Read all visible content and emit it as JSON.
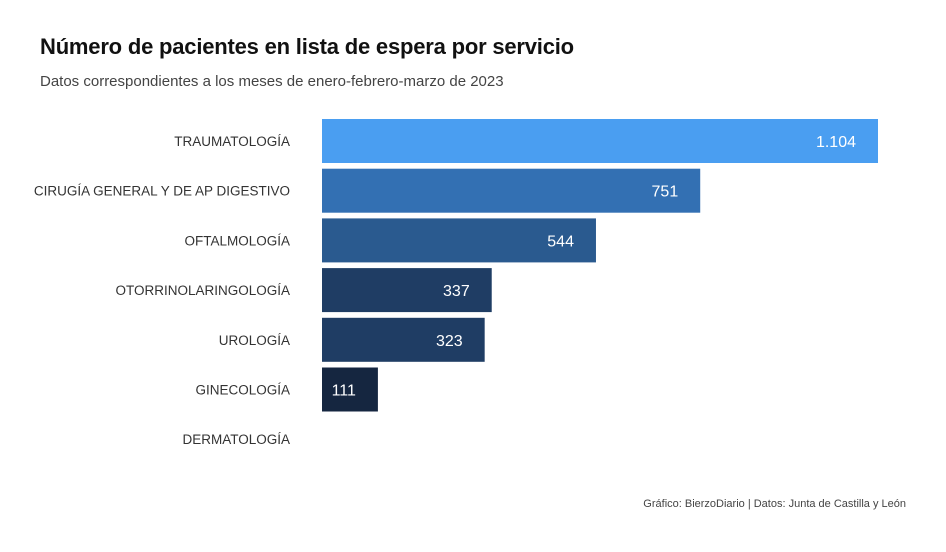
{
  "chart_data": {
    "type": "bar",
    "orientation": "horizontal",
    "title": "Número de pacientes en lista de espera por servicio",
    "subtitle": "Datos correspondientes a los meses de enero-febrero-marzo de 2023",
    "categories": [
      "TRAUMATOLOGÍA",
      "CIRUGÍA GENERAL Y DE AP DIGESTIVO",
      "OFTALMOLOGÍA",
      "OTORRINOLARINGOLOGÍA",
      "UROLOGÍA",
      "GINECOLOGÍA",
      "DERMATOLOGÍA"
    ],
    "values": [
      1104,
      751,
      544,
      337,
      323,
      111,
      null
    ],
    "value_labels": [
      "1.104",
      "751",
      "544",
      "337",
      "323",
      "111",
      ""
    ],
    "colors": [
      "#4a9ef1",
      "#3370b3",
      "#2a5a8f",
      "#1f3d64",
      "#1f3d64",
      "#152640",
      "#152640"
    ],
    "xlim": [
      0,
      1104
    ],
    "grid": false,
    "legend": "none"
  },
  "footer": "Gráfico: BierzoDiario | Datos: Junta de Castilla y León"
}
